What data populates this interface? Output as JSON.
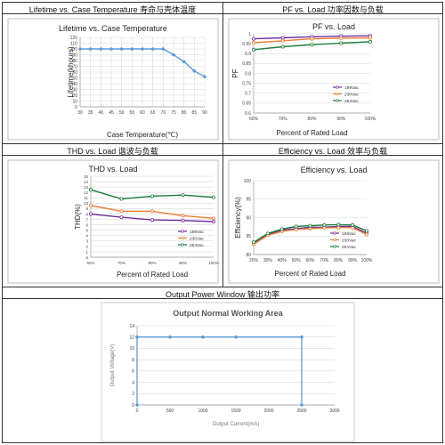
{
  "headers": {
    "lifetime": "Lifetime vs. Case Temperature 寿命与壳体温度",
    "pf": "PF vs. Load 功率因数与负载",
    "thd": "THD vs. Load 谐波与负载",
    "eff": "Efficiency vs. Load 效率与负载",
    "opw": "Output Power Window 输出功率"
  },
  "chart_data": [
    {
      "id": "lifetime",
      "type": "line",
      "title": "Lifetime vs. Case Temperature",
      "xlabel": "Case Temperature(℃)",
      "ylabel": "Lifetime(khours)",
      "xlim": [
        30,
        90
      ],
      "ylim": [
        0,
        120
      ],
      "xticks": [
        30,
        35,
        40,
        45,
        50,
        55,
        60,
        65,
        70,
        75,
        80,
        85,
        90
      ],
      "yticks": [
        0,
        10,
        20,
        30,
        40,
        50,
        60,
        70,
        80,
        90,
        100,
        110,
        120
      ],
      "grid": true,
      "series": [
        {
          "color": "#5b9bd5",
          "x": [
            30,
            35,
            40,
            45,
            50,
            55,
            60,
            65,
            70,
            75,
            80,
            85,
            90
          ],
          "y": [
            100,
            100,
            100,
            100,
            100,
            100,
            100,
            100,
            100,
            90,
            78,
            62,
            52
          ]
        }
      ]
    },
    {
      "id": "pf",
      "type": "line",
      "title": "PF vs. Load",
      "xlabel": "Percent of Rated Load",
      "ylabel": "PF",
      "categories": [
        "60%",
        "70%",
        "80%",
        "90%",
        "100%"
      ],
      "ylim": [
        0.6,
        1.0
      ],
      "yticks": [
        0.6,
        0.65,
        0.7,
        0.75,
        0.8,
        0.85,
        0.9,
        0.95,
        1
      ],
      "legend": "right",
      "series": [
        {
          "name": "198Vac",
          "color": "#7030a0",
          "values": [
            0.975,
            0.98,
            0.985,
            0.988,
            0.99
          ]
        },
        {
          "name": "230Vac",
          "color": "#ed7d31",
          "values": [
            0.955,
            0.965,
            0.975,
            0.978,
            0.98
          ]
        },
        {
          "name": "264Vac",
          "color": "#1e7b3c",
          "values": [
            0.92,
            0.935,
            0.945,
            0.953,
            0.96
          ]
        }
      ]
    },
    {
      "id": "thd",
      "type": "line",
      "title": "THD vs. Load",
      "xlabel": "Percent of Rated Load",
      "ylabel": "THD(%)",
      "categories": [
        "60%",
        "70%",
        "80%",
        "90%",
        "100%"
      ],
      "ylim": [
        0,
        15
      ],
      "yticks": [
        0,
        1,
        2,
        3,
        4,
        5,
        6,
        7,
        8,
        9,
        10,
        11,
        12,
        13,
        14,
        15
      ],
      "legend": "right",
      "series": [
        {
          "name": "198Vac",
          "color": "#7030a0",
          "values": [
            8.0,
            7.4,
            6.9,
            6.8,
            6.6
          ]
        },
        {
          "name": "230Vac",
          "color": "#ed7d31",
          "values": [
            9.6,
            8.5,
            8.5,
            7.7,
            7.2
          ]
        },
        {
          "name": "264Vac",
          "color": "#1e7b3c",
          "values": [
            12.5,
            10.8,
            11.3,
            11.5,
            11.1
          ]
        }
      ]
    },
    {
      "id": "eff",
      "type": "line",
      "title": "Efficiency vs. Load",
      "xlabel": "Percent of Rated Load",
      "ylabel": "Efficiency(%)",
      "categories": [
        "20%",
        "30%",
        "40%",
        "50%",
        "60%",
        "70%",
        "80%",
        "90%",
        "100%"
      ],
      "ylim": [
        80,
        100
      ],
      "yticks": [
        80,
        85,
        90,
        95,
        100
      ],
      "legend": "bottom-right",
      "series": [
        {
          "name": "198Vac",
          "color": "#7030a0",
          "values": [
            83.0,
            85.4,
            86.6,
            87.0,
            87.4,
            87.4,
            87.6,
            87.6,
            85.8
          ]
        },
        {
          "name": "230Vac",
          "color": "#ed7d31",
          "values": [
            82.8,
            85.2,
            86.3,
            86.8,
            87.0,
            87.2,
            87.3,
            87.3,
            85.4
          ]
        },
        {
          "name": "264Vac",
          "color": "#1e7b3c",
          "values": [
            83.3,
            85.7,
            86.9,
            87.6,
            87.8,
            88.0,
            88.1,
            88.0,
            86.4
          ]
        }
      ]
    },
    {
      "id": "opw",
      "type": "line",
      "title": "Output Normal Working Area",
      "xlabel": "Output Current(mA)",
      "ylabel": "Output Voltage(V)",
      "xlim": [
        0,
        3000
      ],
      "ylim": [
        0,
        14
      ],
      "xticks": [
        0,
        500,
        1000,
        1500,
        2000,
        2500,
        3000
      ],
      "yticks": [
        0,
        2,
        4,
        6,
        8,
        10,
        12,
        14
      ],
      "series": [
        {
          "color": "#5b9bd5",
          "x": [
            0,
            0,
            500,
            1000,
            1500,
            2500,
            2500
          ],
          "y": [
            0,
            12,
            12,
            12,
            12,
            12,
            0
          ]
        }
      ]
    }
  ]
}
